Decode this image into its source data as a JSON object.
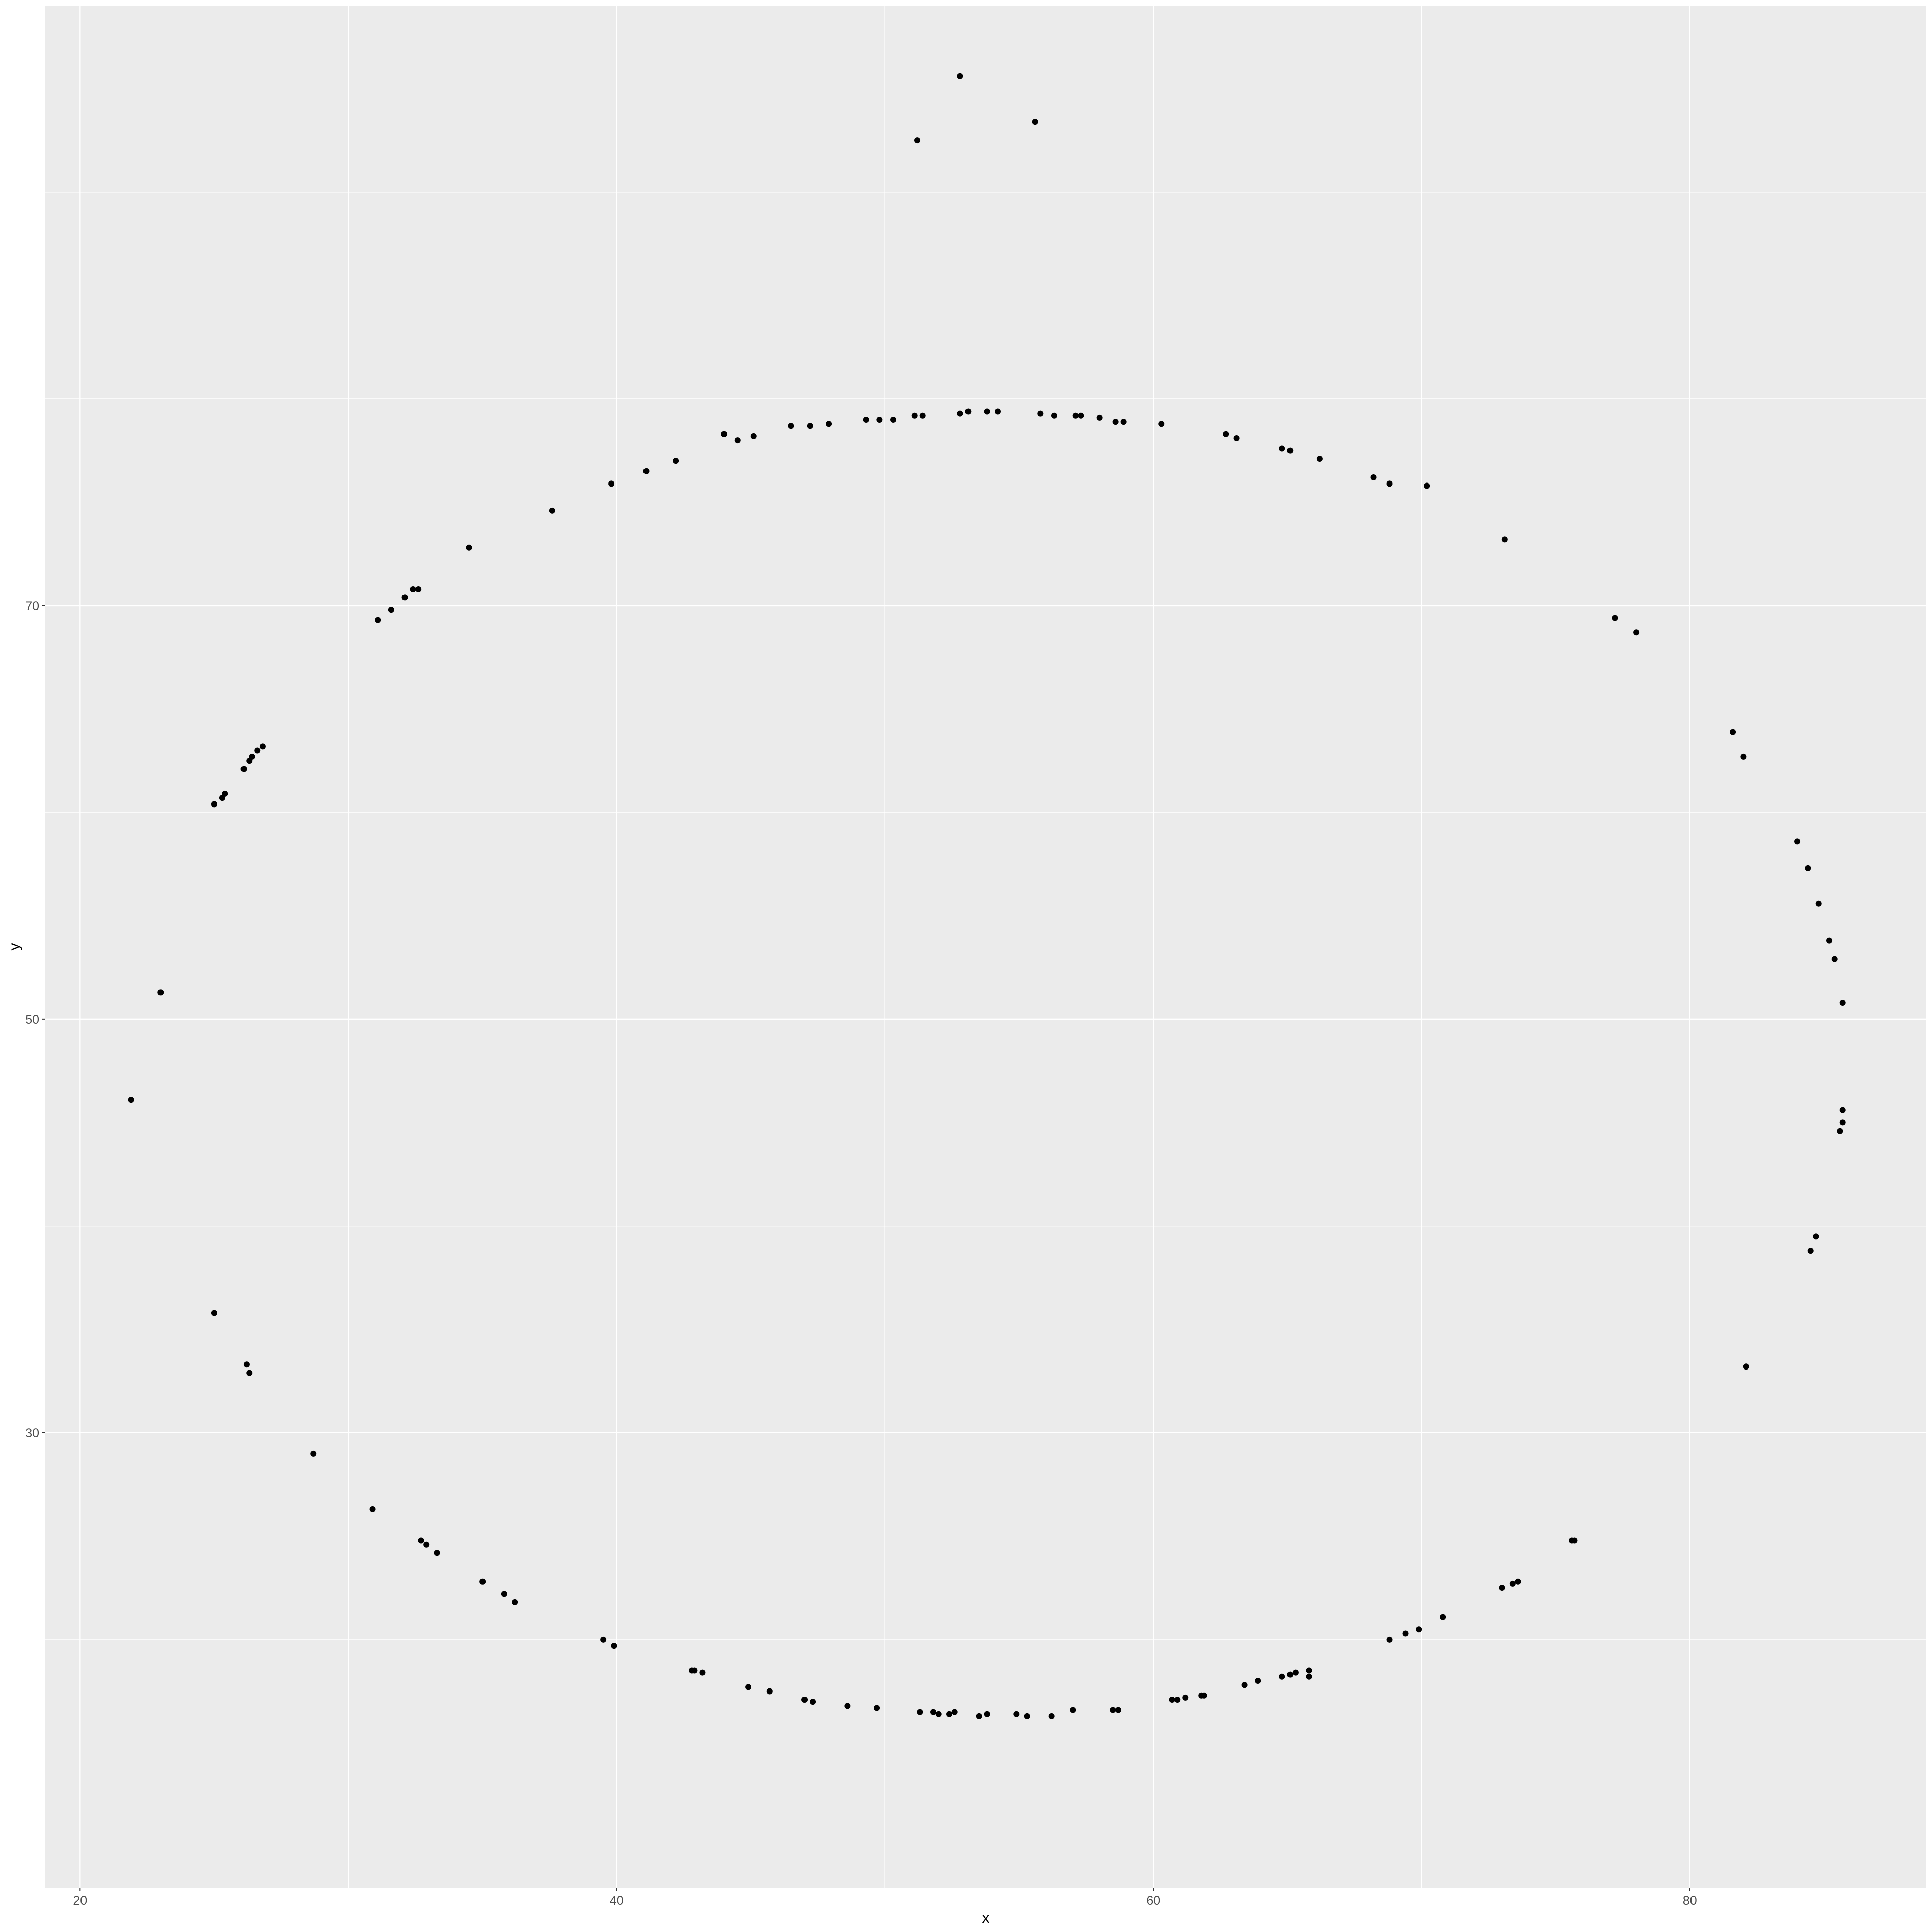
{
  "chart_data": {
    "type": "scatter",
    "title": "",
    "xlabel": "x",
    "ylabel": "y",
    "xlim": [
      18.7,
      88.8
    ],
    "ylim": [
      8.0,
      99.0
    ],
    "x_ticks": [
      20,
      40,
      60,
      80
    ],
    "y_ticks": [
      30,
      50,
      70
    ],
    "x_minor_ticks": [
      30,
      50,
      70
    ],
    "y_minor_ticks": [
      20,
      40,
      60,
      80,
      90
    ],
    "grid": true,
    "legend": "none",
    "colors": {
      "panel": "#EBEBEB",
      "gridline": "#FFFFFF",
      "point": "#000000",
      "tick_label": "#4D4D4D"
    },
    "points": [
      [
        52.8,
        95.6
      ],
      [
        55.6,
        93.4
      ],
      [
        51.2,
        92.5
      ],
      [
        52.8,
        79.3
      ],
      [
        53.1,
        79.4
      ],
      [
        53.8,
        79.4
      ],
      [
        54.2,
        79.4
      ],
      [
        55.8,
        79.3
      ],
      [
        56.3,
        79.2
      ],
      [
        57.1,
        79.2
      ],
      [
        57.3,
        79.2
      ],
      [
        58.0,
        79.1
      ],
      [
        58.6,
        78.9
      ],
      [
        58.9,
        78.9
      ],
      [
        60.3,
        78.8
      ],
      [
        51.4,
        79.2
      ],
      [
        51.1,
        79.2
      ],
      [
        50.3,
        79.0
      ],
      [
        49.8,
        79.0
      ],
      [
        49.3,
        79.0
      ],
      [
        47.9,
        78.8
      ],
      [
        47.2,
        78.7
      ],
      [
        46.5,
        78.7
      ],
      [
        45.1,
        78.2
      ],
      [
        44.5,
        78.0
      ],
      [
        44.0,
        78.3
      ],
      [
        62.7,
        78.3
      ],
      [
        63.1,
        78.1
      ],
      [
        64.8,
        77.6
      ],
      [
        65.1,
        77.5
      ],
      [
        66.2,
        77.1
      ],
      [
        42.2,
        77.0
      ],
      [
        41.1,
        76.5
      ],
      [
        39.8,
        75.9
      ],
      [
        37.6,
        74.6
      ],
      [
        34.5,
        72.8
      ],
      [
        32.6,
        70.8
      ],
      [
        32.4,
        70.8
      ],
      [
        32.1,
        70.4
      ],
      [
        31.6,
        69.8
      ],
      [
        31.1,
        69.3
      ],
      [
        68.2,
        76.2
      ],
      [
        68.8,
        75.9
      ],
      [
        70.2,
        75.8
      ],
      [
        73.1,
        73.2
      ],
      [
        77.2,
        69.4
      ],
      [
        78.0,
        68.7
      ],
      [
        81.6,
        63.9
      ],
      [
        82.0,
        62.7
      ],
      [
        26.8,
        63.2
      ],
      [
        26.6,
        63.0
      ],
      [
        26.4,
        62.7
      ],
      [
        26.3,
        62.5
      ],
      [
        26.1,
        62.1
      ],
      [
        25.4,
        60.9
      ],
      [
        25.3,
        60.7
      ],
      [
        25.0,
        60.4
      ],
      [
        23.0,
        51.3
      ],
      [
        21.9,
        46.1
      ],
      [
        84.0,
        58.6
      ],
      [
        84.4,
        57.3
      ],
      [
        84.8,
        55.6
      ],
      [
        85.2,
        53.8
      ],
      [
        85.4,
        52.9
      ],
      [
        85.7,
        50.8
      ],
      [
        85.7,
        45.6
      ],
      [
        85.7,
        45.0
      ],
      [
        85.6,
        44.6
      ],
      [
        84.7,
        39.5
      ],
      [
        84.5,
        38.8
      ],
      [
        82.1,
        33.2
      ],
      [
        25.0,
        35.8
      ],
      [
        26.2,
        33.3
      ],
      [
        26.3,
        32.9
      ],
      [
        28.7,
        29.0
      ],
      [
        30.9,
        26.3
      ],
      [
        32.7,
        24.8
      ],
      [
        32.9,
        24.6
      ],
      [
        33.3,
        24.2
      ],
      [
        35.0,
        22.8
      ],
      [
        35.8,
        22.2
      ],
      [
        36.2,
        21.8
      ],
      [
        39.5,
        20.0
      ],
      [
        39.9,
        19.7
      ],
      [
        42.8,
        18.5
      ],
      [
        42.9,
        18.5
      ],
      [
        43.2,
        18.4
      ],
      [
        44.9,
        17.7
      ],
      [
        45.7,
        17.5
      ],
      [
        47.0,
        17.1
      ],
      [
        47.3,
        17.0
      ],
      [
        48.6,
        16.8
      ],
      [
        49.7,
        16.7
      ],
      [
        51.3,
        16.5
      ],
      [
        51.8,
        16.5
      ],
      [
        52.0,
        16.4
      ],
      [
        52.4,
        16.4
      ],
      [
        52.6,
        16.5
      ],
      [
        53.5,
        16.3
      ],
      [
        53.8,
        16.4
      ],
      [
        54.9,
        16.4
      ],
      [
        55.3,
        16.3
      ],
      [
        56.2,
        16.3
      ],
      [
        57.0,
        16.6
      ],
      [
        58.5,
        16.6
      ],
      [
        58.7,
        16.6
      ],
      [
        60.7,
        17.1
      ],
      [
        60.9,
        17.1
      ],
      [
        61.2,
        17.2
      ],
      [
        61.8,
        17.3
      ],
      [
        61.9,
        17.3
      ],
      [
        63.4,
        17.8
      ],
      [
        63.9,
        18.0
      ],
      [
        64.8,
        18.2
      ],
      [
        65.1,
        18.3
      ],
      [
        65.3,
        18.4
      ],
      [
        65.8,
        18.5
      ],
      [
        65.8,
        18.2
      ],
      [
        68.8,
        20.0
      ],
      [
        69.4,
        20.3
      ],
      [
        69.9,
        20.5
      ],
      [
        70.8,
        21.1
      ],
      [
        73.0,
        22.5
      ],
      [
        73.4,
        22.7
      ],
      [
        73.6,
        22.8
      ],
      [
        75.6,
        24.8
      ],
      [
        75.7,
        24.8
      ]
    ]
  }
}
